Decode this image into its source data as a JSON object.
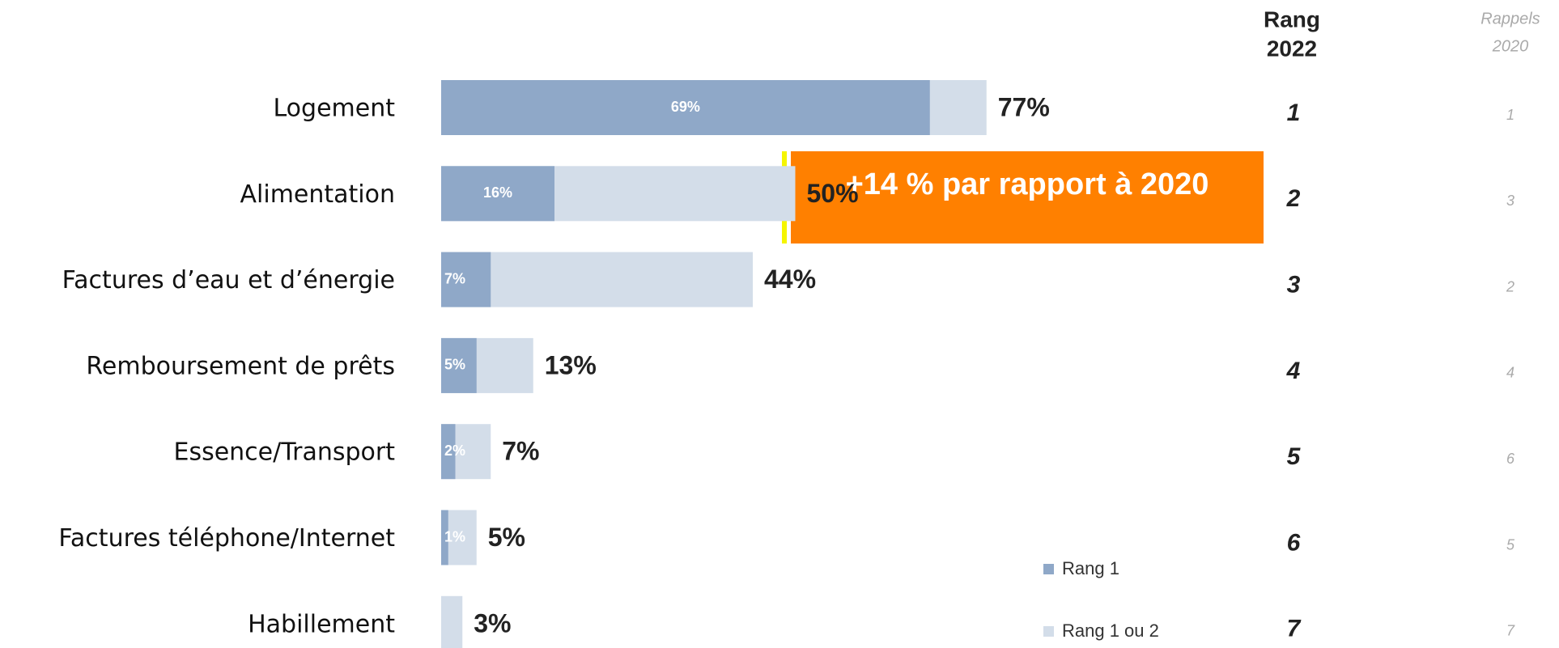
{
  "chart_data": {
    "type": "barh-overlap",
    "categories": [
      "Logement",
      "Alimentation",
      "Factures d’eau et d’énergie",
      "Remboursement de prêts",
      "Essence/Transport",
      "Factures téléphone/Internet",
      "Habillement"
    ],
    "series": [
      {
        "name": "Rang 1 ou 2",
        "color": "#d3dde9",
        "values": [
          77,
          50,
          44,
          13,
          7,
          5,
          3
        ],
        "value_labels": [
          "77%",
          "50%",
          "44%",
          "13%",
          "7%",
          "5%",
          "3%"
        ]
      },
      {
        "name": "Rang 1",
        "color": "#8fa8c8",
        "values": [
          69,
          16,
          7,
          5,
          2,
          1,
          null
        ],
        "value_labels": [
          "69%",
          "16%",
          "7%",
          "5%",
          "2%",
          "1%",
          null
        ]
      }
    ],
    "xlim": [
      0,
      80
    ],
    "rank_header": [
      "Rang",
      "2022"
    ],
    "rank_2022": [
      1,
      2,
      3,
      4,
      5,
      6,
      7
    ],
    "recall_header": [
      "Rappels",
      "2020"
    ],
    "recall_2020": [
      1,
      3,
      2,
      4,
      6,
      5,
      7
    ],
    "annotation": "+14 % par rapport à 2020"
  }
}
